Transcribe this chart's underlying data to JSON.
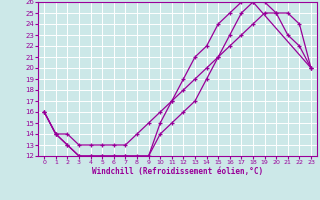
{
  "xlabel": "Windchill (Refroidissement éolien,°C)",
  "xlim": [
    -0.5,
    23.5
  ],
  "ylim": [
    12,
    26
  ],
  "xticks": [
    0,
    1,
    2,
    3,
    4,
    5,
    6,
    7,
    8,
    9,
    10,
    11,
    12,
    13,
    14,
    15,
    16,
    17,
    18,
    19,
    20,
    21,
    22,
    23
  ],
  "yticks": [
    12,
    13,
    14,
    15,
    16,
    17,
    18,
    19,
    20,
    21,
    22,
    23,
    24,
    25,
    26
  ],
  "bg_color": "#cce8e8",
  "grid_color": "#ffffff",
  "line_color": "#990099",
  "line1_x": [
    0,
    1,
    2,
    3,
    4,
    5,
    6,
    7,
    8,
    9,
    10,
    11,
    12,
    13,
    14,
    15,
    16,
    17,
    18,
    23
  ],
  "line1_y": [
    16,
    14,
    13,
    12,
    12,
    12,
    12,
    12,
    12,
    12,
    15,
    17,
    19,
    21,
    22,
    24,
    25,
    26,
    26,
    20
  ],
  "line2_x": [
    0,
    1,
    2,
    3,
    4,
    5,
    6,
    7,
    8,
    9,
    10,
    11,
    12,
    13,
    14,
    15,
    16,
    17,
    18,
    19,
    20,
    21,
    22,
    23
  ],
  "line2_y": [
    16,
    14,
    14,
    13,
    13,
    13,
    13,
    13,
    14,
    15,
    16,
    17,
    18,
    19,
    20,
    21,
    22,
    23,
    24,
    25,
    25,
    25,
    24,
    20
  ],
  "line3_x": [
    0,
    1,
    2,
    3,
    4,
    5,
    6,
    7,
    9,
    10,
    11,
    12,
    13,
    14,
    15,
    16,
    17,
    18,
    19,
    20,
    21,
    22,
    23
  ],
  "line3_y": [
    16,
    14,
    13,
    12,
    12,
    12,
    12,
    12,
    12,
    14,
    15,
    16,
    17,
    19,
    21,
    23,
    25,
    26,
    26,
    25,
    23,
    22,
    20
  ]
}
